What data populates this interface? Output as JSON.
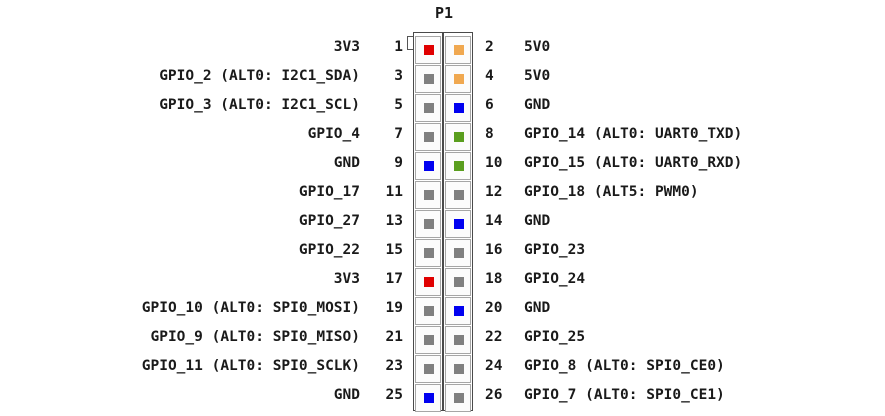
{
  "header_label": "P1",
  "pin_colors": {
    "power_3v3": "#e00000",
    "power_5v": "#f0a850",
    "ground": "#0000f0",
    "uart": "#5a9e1e",
    "gpio": "#808080"
  },
  "pins": [
    {
      "left": {
        "num": "1",
        "label": "3V3",
        "kind": "power_3v3"
      },
      "right": {
        "num": "2",
        "label": "5V0",
        "kind": "power_5v"
      }
    },
    {
      "left": {
        "num": "3",
        "label": "GPIO_2 (ALT0: I2C1_SDA)",
        "kind": "gpio"
      },
      "right": {
        "num": "4",
        "label": "5V0",
        "kind": "power_5v"
      }
    },
    {
      "left": {
        "num": "5",
        "label": "GPIO_3 (ALT0: I2C1_SCL)",
        "kind": "gpio"
      },
      "right": {
        "num": "6",
        "label": "GND",
        "kind": "ground"
      }
    },
    {
      "left": {
        "num": "7",
        "label": "GPIO_4",
        "kind": "gpio"
      },
      "right": {
        "num": "8",
        "label": "GPIO_14 (ALT0: UART0_TXD)",
        "kind": "uart"
      }
    },
    {
      "left": {
        "num": "9",
        "label": "GND",
        "kind": "ground"
      },
      "right": {
        "num": "10",
        "label": "GPIO_15 (ALT0: UART0_RXD)",
        "kind": "uart"
      }
    },
    {
      "left": {
        "num": "11",
        "label": "GPIO_17",
        "kind": "gpio"
      },
      "right": {
        "num": "12",
        "label": "GPIO_18 (ALT5: PWM0)",
        "kind": "gpio"
      }
    },
    {
      "left": {
        "num": "13",
        "label": "GPIO_27",
        "kind": "gpio"
      },
      "right": {
        "num": "14",
        "label": "GND",
        "kind": "ground"
      }
    },
    {
      "left": {
        "num": "15",
        "label": "GPIO_22",
        "kind": "gpio"
      },
      "right": {
        "num": "16",
        "label": "GPIO_23",
        "kind": "gpio"
      }
    },
    {
      "left": {
        "num": "17",
        "label": "3V3",
        "kind": "power_3v3"
      },
      "right": {
        "num": "18",
        "label": "GPIO_24",
        "kind": "gpio"
      }
    },
    {
      "left": {
        "num": "19",
        "label": "GPIO_10 (ALT0: SPI0_MOSI)",
        "kind": "gpio"
      },
      "right": {
        "num": "20",
        "label": "GND",
        "kind": "ground"
      }
    },
    {
      "left": {
        "num": "21",
        "label": "GPIO_9 (ALT0: SPI0_MISO)",
        "kind": "gpio"
      },
      "right": {
        "num": "22",
        "label": "GPIO_25",
        "kind": "gpio"
      }
    },
    {
      "left": {
        "num": "23",
        "label": "GPIO_11 (ALT0: SPI0_SCLK)",
        "kind": "gpio"
      },
      "right": {
        "num": "24",
        "label": "GPIO_8 (ALT0: SPI0_CE0)",
        "kind": "gpio"
      }
    },
    {
      "left": {
        "num": "25",
        "label": "GND",
        "kind": "ground"
      },
      "right": {
        "num": "26",
        "label": "GPIO_7 (ALT0: SPI0_CE1)",
        "kind": "gpio"
      }
    }
  ]
}
